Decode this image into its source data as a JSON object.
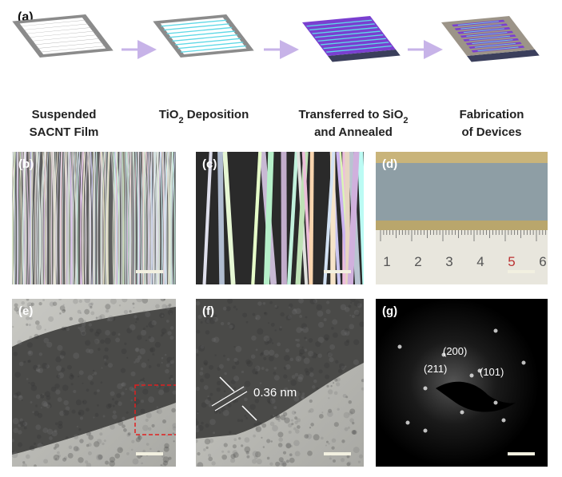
{
  "panel_a": {
    "label": "(a)",
    "steps": [
      {
        "lines": [
          [
            "Suspended"
          ],
          [
            "SACNT Film"
          ]
        ]
      },
      {
        "lines": [
          [
            "TiO",
            "2",
            " Deposition"
          ]
        ]
      },
      {
        "lines": [
          [
            "Transferred to SiO",
            "2"
          ],
          [
            "and Annealed"
          ]
        ]
      },
      {
        "lines": [
          [
            "Fabrication"
          ],
          [
            "of Devices"
          ]
        ]
      }
    ]
  },
  "panels": [
    {
      "label": "(b)"
    },
    {
      "label": "(c)"
    },
    {
      "label": "(d)",
      "ruler": [
        "1",
        "2",
        "3",
        "4",
        "5",
        "6"
      ]
    },
    {
      "label": "(e)"
    },
    {
      "label": "(f)",
      "annotation": "0.36 nm"
    },
    {
      "label": "(g)",
      "spots": [
        "(200)",
        "(211)",
        "(101)"
      ]
    }
  ]
}
